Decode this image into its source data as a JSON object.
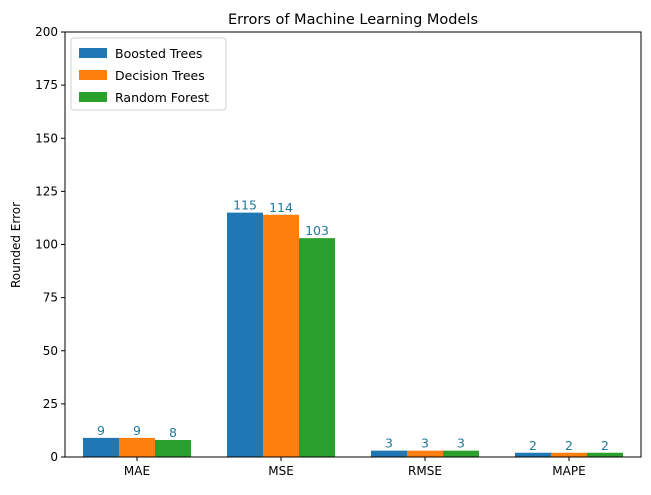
{
  "chart_data": {
    "type": "bar",
    "title": "Errors of Machine Learning Models",
    "xlabel": "",
    "ylabel": "Rounded Error",
    "ylim": [
      0,
      200
    ],
    "yticks": [
      0,
      25,
      50,
      75,
      100,
      125,
      150,
      175,
      200
    ],
    "categories": [
      "MAE",
      "MSE",
      "RMSE",
      "MAPE"
    ],
    "series": [
      {
        "name": "Boosted Trees",
        "color": "#1f77b4",
        "values": [
          9,
          115,
          3,
          2
        ]
      },
      {
        "name": "Decision Trees",
        "color": "#ff7f0e",
        "values": [
          9,
          114,
          3,
          2
        ]
      },
      {
        "name": "Random Forest",
        "color": "#2ca02c",
        "values": [
          8,
          103,
          3,
          2
        ]
      }
    ],
    "data_label_color": "#1f7a9a",
    "legend": "top-left",
    "grid": false
  }
}
